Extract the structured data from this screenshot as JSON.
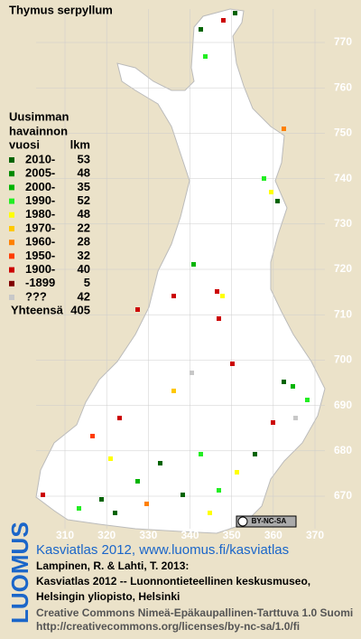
{
  "title": "Thymus serpyllum",
  "legend": {
    "heading": [
      "Uusimman",
      "havainnon"
    ],
    "columns": [
      "vuosi",
      "lkm"
    ],
    "rows": [
      {
        "label": "2010-",
        "count": 53,
        "color": "#006400"
      },
      {
        "label": "2005-",
        "count": 48,
        "color": "#008a00"
      },
      {
        "label": "2000-",
        "count": 35,
        "color": "#00b400"
      },
      {
        "label": "1990-",
        "count": 52,
        "color": "#22ee22"
      },
      {
        "label": "1980-",
        "count": 48,
        "color": "#ffff00"
      },
      {
        "label": "1970-",
        "count": 22,
        "color": "#ffc800"
      },
      {
        "label": "1960-",
        "count": 28,
        "color": "#ff8000"
      },
      {
        "label": "1950-",
        "count": 32,
        "color": "#ff3c00"
      },
      {
        "label": "1900-",
        "count": 40,
        "color": "#cc0000"
      },
      {
        "label": "-1899",
        "count": 5,
        "color": "#800000"
      },
      {
        "label": "???",
        "count": 42,
        "color": "#c8c8c8"
      }
    ],
    "total": {
      "label": "Yhteensä",
      "count": 405
    }
  },
  "axes": {
    "x_ticks": [
      310,
      320,
      330,
      340,
      350,
      360,
      370
    ],
    "y_ticks": [
      670,
      680,
      690,
      700,
      710,
      720,
      730,
      740,
      750,
      760,
      770
    ]
  },
  "badge": "BY-NC-SA",
  "footer": {
    "logo": "LUOMUS",
    "link": "Kasviatlas 2012, www.luomus.fi/kasviatlas",
    "citation": [
      "Lampinen, R. & Lahti, T. 2013:",
      "Kasviatlas 2012 -- Luonnontieteellinen keskusmuseo,",
      "Helsingin yliopisto, Helsinki"
    ],
    "license": [
      "Creative Commons Nimeä-Epäkaupallinen-Tarttuva 1.0 Suomi",
      "http://creativecommons.org/licenses/by-nc-sa/1.0/fi"
    ]
  }
}
